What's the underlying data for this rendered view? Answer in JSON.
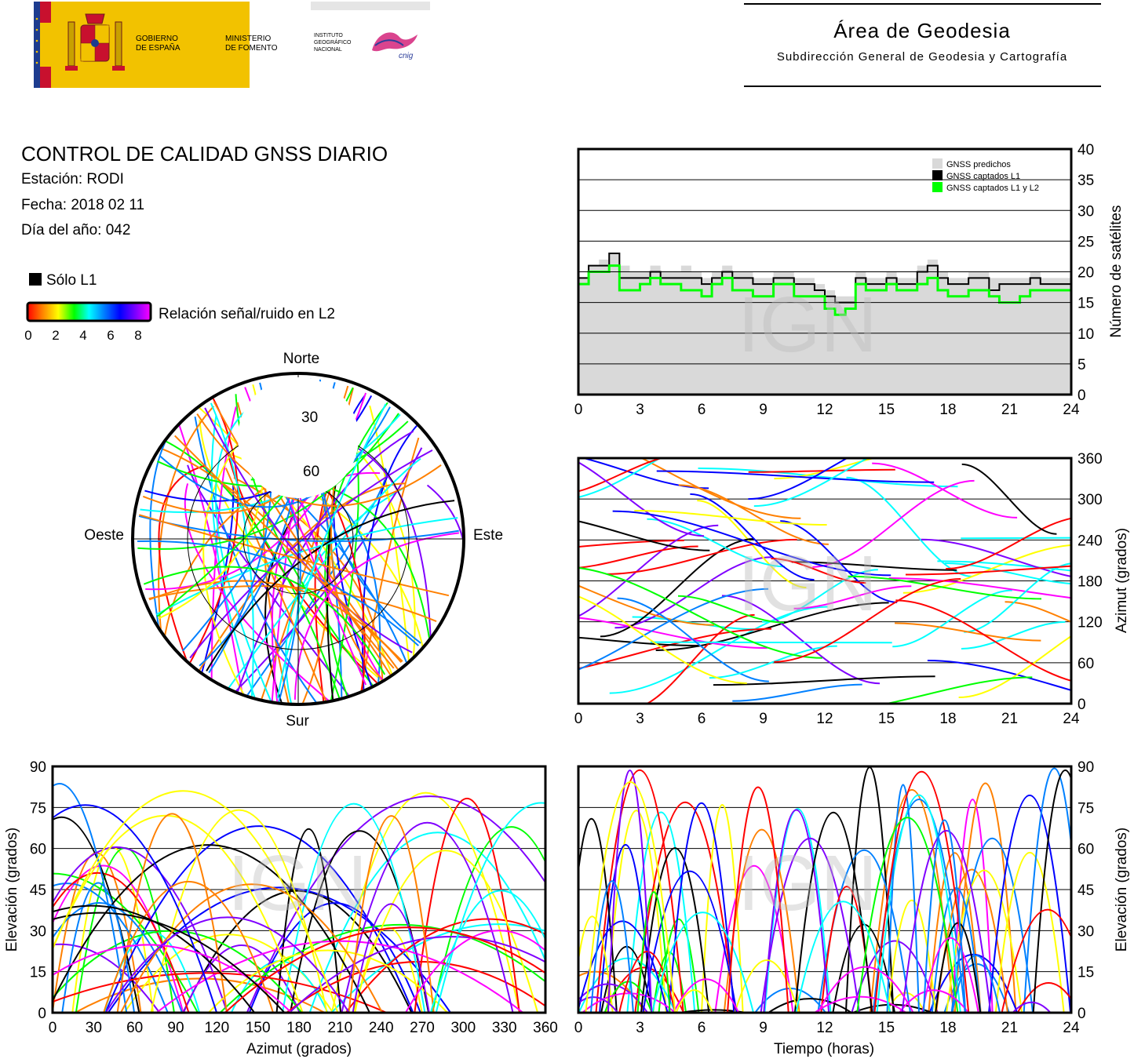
{
  "header": {
    "gov_line1": "GOBIERNO",
    "gov_line2": "DE ESPAÑA",
    "min_line1": "MINISTERIO",
    "min_line2": "DE FOMENTO",
    "ign_line1": "INSTITUTO",
    "ign_line2": "GEOGRÁFICO",
    "ign_line3": "NACIONAL",
    "ign_logo_text": "cnig",
    "area_title": "Área de Geodesia",
    "area_subtitle": "Subdirección General de Geodesia y Cartografía"
  },
  "report": {
    "title": "CONTROL DE CALIDAD GNSS DIARIO",
    "station": "Estación: RODI",
    "date": "Fecha: 2018 02 11",
    "doy": "Día del año: 042"
  },
  "legend": {
    "l1_only": "Sólo L1",
    "snr_label": "Relación señal/ruido en L2",
    "snr_ticks": [
      "0",
      "2",
      "4",
      "6",
      "8"
    ],
    "snr_colors": [
      "#ff0000",
      "#ff8000",
      "#ffff00",
      "#00ff00",
      "#00ffff",
      "#0080ff",
      "#0000ff",
      "#8000ff",
      "#ff00ff"
    ]
  },
  "watermark": "IGN",
  "charts": {
    "skyplot": {
      "north": "Norte",
      "south": "Sur",
      "west": "Oeste",
      "east": "Este",
      "ring_labels": [
        "30",
        "60"
      ]
    },
    "satcount": {
      "y_title": "Número de satélites",
      "y_ticks": [
        "0",
        "5",
        "10",
        "15",
        "20",
        "25",
        "30",
        "35",
        "40"
      ],
      "x_ticks": [
        "0",
        "3",
        "6",
        "9",
        "12",
        "15",
        "18",
        "21",
        "24"
      ],
      "legend": [
        "GNSS predichos",
        "GNSS captados L1",
        "GNSS captados L1 y L2"
      ]
    },
    "azimuth_time": {
      "y_title": "Azimut (grados)",
      "y_ticks": [
        "0",
        "60",
        "120",
        "180",
        "240",
        "300",
        "360"
      ],
      "x_ticks": [
        "0",
        "3",
        "6",
        "9",
        "12",
        "15",
        "18",
        "21",
        "24"
      ]
    },
    "elev_azimuth": {
      "y_title": "Elevación (grados)",
      "x_title": "Azimut (grados)",
      "y_ticks": [
        "0",
        "15",
        "30",
        "45",
        "60",
        "75",
        "90"
      ],
      "x_ticks": [
        "0",
        "30",
        "60",
        "90",
        "120",
        "150",
        "180",
        "210",
        "240",
        "270",
        "300",
        "330",
        "360"
      ]
    },
    "elev_time": {
      "y_title": "Elevación (grados)",
      "x_title": "Tiempo (horas)",
      "y_ticks": [
        "0",
        "15",
        "30",
        "45",
        "60",
        "75",
        "90"
      ],
      "x_ticks": [
        "0",
        "3",
        "6",
        "9",
        "12",
        "15",
        "18",
        "21",
        "24"
      ]
    }
  },
  "chart_data": [
    {
      "type": "area",
      "ylabel": "Número de satélites",
      "xlim": [
        0,
        24
      ],
      "ylim": [
        0,
        40
      ],
      "grid": true,
      "legend_position": "top-right",
      "x": [
        0,
        0.5,
        1,
        1.5,
        2,
        2.5,
        3,
        3.5,
        4,
        4.5,
        5,
        5.5,
        6,
        6.5,
        7,
        7.5,
        8,
        8.5,
        9,
        9.5,
        10,
        10.5,
        11,
        11.5,
        12,
        12.5,
        13,
        13.5,
        14,
        14.5,
        15,
        15.5,
        16,
        16.5,
        17,
        17.5,
        18,
        18.5,
        19,
        19.5,
        20,
        20.5,
        21,
        21.5,
        22,
        22.5,
        23,
        23.5,
        24
      ],
      "series": [
        {
          "name": "GNSS predichos",
          "values": [
            19,
            21,
            22,
            23,
            21,
            20,
            20,
            21,
            20,
            20,
            21,
            20,
            19,
            20,
            21,
            20,
            20,
            19,
            19,
            20,
            20,
            19,
            19,
            18,
            17,
            16,
            16,
            20,
            19,
            19,
            20,
            19,
            19,
            21,
            22,
            20,
            19,
            19,
            20,
            20,
            19,
            19,
            19,
            19,
            20,
            19,
            19,
            19,
            19
          ]
        },
        {
          "name": "GNSS captados L1",
          "values": [
            19,
            21,
            21,
            23,
            19,
            19,
            19,
            20,
            19,
            19,
            19,
            19,
            18,
            19,
            20,
            19,
            19,
            18,
            18,
            19,
            19,
            18,
            18,
            17,
            16,
            15,
            15,
            19,
            18,
            18,
            19,
            18,
            18,
            20,
            21,
            19,
            18,
            18,
            19,
            19,
            17,
            18,
            18,
            18,
            19,
            18,
            18,
            18,
            18
          ]
        },
        {
          "name": "GNSS captados L1 y L2",
          "values": [
            18,
            20,
            20,
            21,
            17,
            17,
            18,
            19,
            18,
            18,
            17,
            17,
            16,
            18,
            19,
            17,
            17,
            16,
            16,
            18,
            18,
            16,
            16,
            16,
            14,
            13,
            14,
            18,
            17,
            17,
            18,
            17,
            17,
            18,
            19,
            17,
            16,
            16,
            17,
            17,
            16,
            15,
            15,
            16,
            17,
            17,
            17,
            17,
            17
          ]
        }
      ]
    },
    {
      "type": "scatter",
      "title": "",
      "ylabel": "Azimut (grados)",
      "xlim": [
        0,
        24
      ],
      "ylim": [
        0,
        360
      ],
      "grid": true
    },
    {
      "type": "scatter",
      "xlabel": "Azimut (grados)",
      "ylabel": "Elevación (grados)",
      "xlim": [
        0,
        360
      ],
      "ylim": [
        0,
        90
      ],
      "grid": true
    },
    {
      "type": "line",
      "xlabel": "Tiempo (horas)",
      "ylabel": "Elevación (grados)",
      "xlim": [
        0,
        24
      ],
      "ylim": [
        0,
        90
      ],
      "grid": true
    }
  ]
}
